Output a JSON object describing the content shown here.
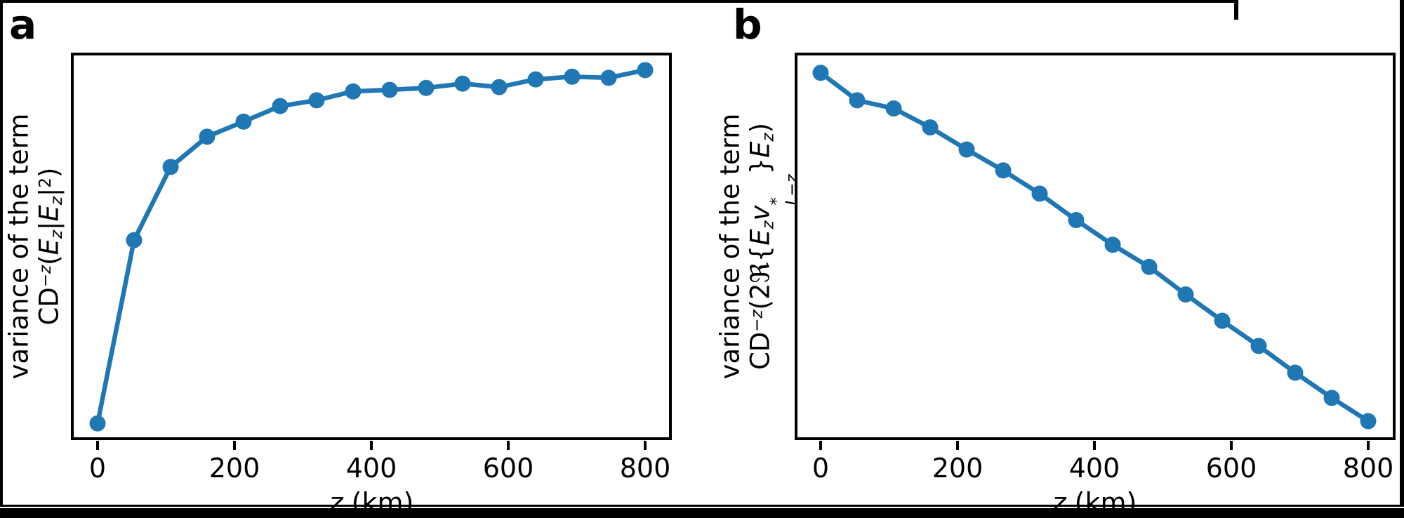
{
  "figure": {
    "panels": [
      {
        "id": "a",
        "label": "a",
        "xlabel_html": "<i>z</i> (km)",
        "xlabel_text": "z (km)",
        "ylabel_line1": "variance of the term",
        "ylabel_line2_html": "CD<sup>−<i>z</i></sup>(<i>E<sub>z</sub></i>|<i>E<sub>z</sub></i>|<sup>2</sup>)",
        "ylabel_line2_text": "CD^(-z)(E_z|E_z|^2)",
        "xtick_labels": [
          "0",
          "200",
          "400",
          "600",
          "800"
        ]
      },
      {
        "id": "b",
        "label": "b",
        "xlabel_html": "<i>z</i> (km)",
        "xlabel_text": "z (km)",
        "ylabel_line1": "variance of the term",
        "ylabel_line2_html": "CD<sup>−<i>z</i></sup>(2ℜ{<i>E<sub>z</sub>v</i><span class='stack'><span class='st'>*</span><span class='st'><i>L</i>−<i>z</i></span></span>}<i>E<sub>z</sub></i>)",
        "ylabel_line2_text": "CD^(-z)(2Re{E_z v*_(L-z)}E_z)",
        "xtick_labels": [
          "0",
          "200",
          "400",
          "600",
          "800"
        ]
      }
    ],
    "colors": {
      "line": "#1f77b4",
      "axes": "#000000",
      "background": "#ffffff",
      "frame": "#000000"
    }
  },
  "chart_data": [
    {
      "panel": "a",
      "type": "line",
      "title": "",
      "xlabel": "z (km)",
      "ylabel": "variance of the term CD^(-z)(E_z|E_z|^2)",
      "legend": "none",
      "grid": false,
      "marker": "o",
      "line_color": "#1f77b4",
      "xticks": [
        0,
        200,
        400,
        600,
        800
      ],
      "xlim_km": [
        -40,
        840
      ],
      "yticks_shown": false,
      "y_units": "normalized fraction of axes height (no y tick labels in figure)",
      "x_km": [
        0,
        53.3,
        106.7,
        160,
        213.3,
        266.7,
        320,
        373.3,
        426.7,
        480,
        533.3,
        586.7,
        640,
        693.3,
        746.7,
        800
      ],
      "y_rel": [
        0.043,
        0.516,
        0.705,
        0.783,
        0.822,
        0.862,
        0.877,
        0.9,
        0.904,
        0.909,
        0.92,
        0.911,
        0.931,
        0.938,
        0.935,
        0.955
      ]
    },
    {
      "panel": "b",
      "type": "line",
      "title": "",
      "xlabel": "z (km)",
      "ylabel": "variance of the term CD^(-z)(2Re{E_z v*_(L-z)}E_z)",
      "legend": "none",
      "grid": false,
      "marker": "o",
      "line_color": "#1f77b4",
      "xticks": [
        0,
        200,
        400,
        600,
        800
      ],
      "xlim_km": [
        -40,
        840
      ],
      "yticks_shown": false,
      "y_units": "normalized fraction of axes height (no y tick labels in figure)",
      "x_km": [
        0,
        53.3,
        106.7,
        160,
        213.3,
        266.7,
        320,
        373.3,
        426.7,
        480,
        533.3,
        586.7,
        640,
        693.3,
        746.7,
        800
      ],
      "y_rel": [
        0.948,
        0.877,
        0.856,
        0.807,
        0.75,
        0.696,
        0.636,
        0.568,
        0.504,
        0.447,
        0.376,
        0.308,
        0.243,
        0.174,
        0.109,
        0.049
      ]
    }
  ]
}
